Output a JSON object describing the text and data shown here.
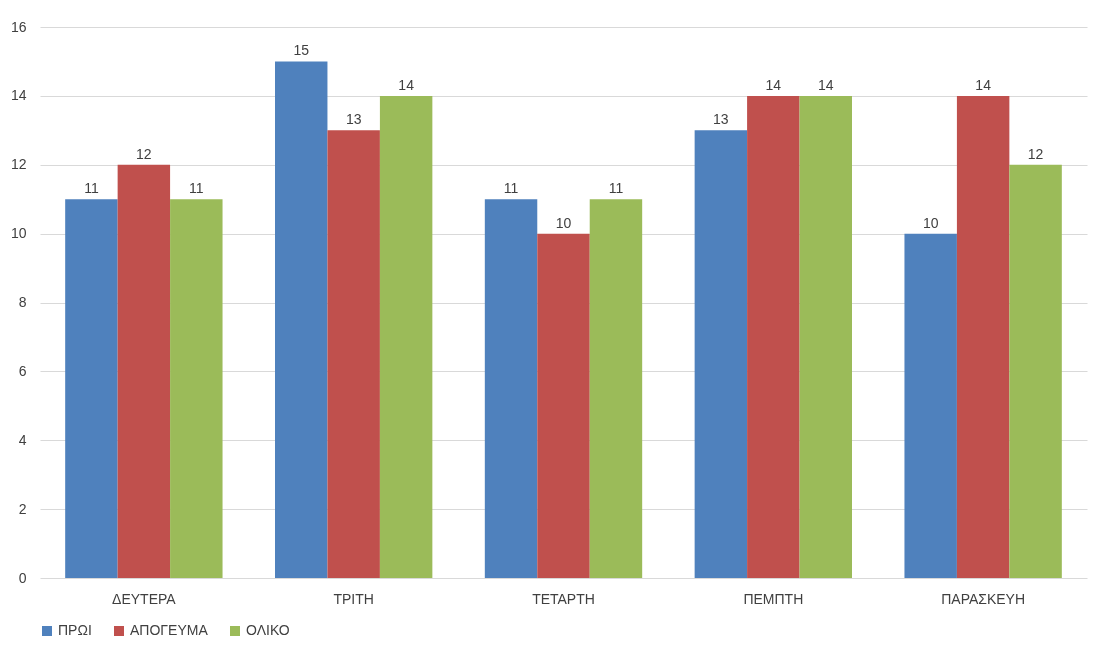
{
  "chart_data": {
    "type": "bar",
    "categories": [
      "ΔΕΥΤΕΡΑ",
      "ΤΡΙΤΗ",
      "ΤΕΤΑΡΤΗ",
      "ΠΕΜΠΤΗ",
      "ΠΑΡΑΣΚΕΥΗ"
    ],
    "series": [
      {
        "name": "ΠΡΩΙ",
        "color": "#4f81bd",
        "values": [
          11,
          15,
          11,
          13,
          10
        ]
      },
      {
        "name": "ΑΠΟΓΕΥΜΑ",
        "color": "#c0504d",
        "values": [
          12,
          13,
          10,
          14,
          14
        ]
      },
      {
        "name": "ΟΛΙΚΟ",
        "color": "#9bbb59",
        "values": [
          11,
          14,
          11,
          14,
          12
        ]
      }
    ],
    "ylim": [
      0,
      16
    ],
    "yticks": [
      0,
      2,
      4,
      6,
      8,
      10,
      12,
      14,
      16
    ],
    "grid": "y",
    "legend": "bottom",
    "data_labels": true
  }
}
